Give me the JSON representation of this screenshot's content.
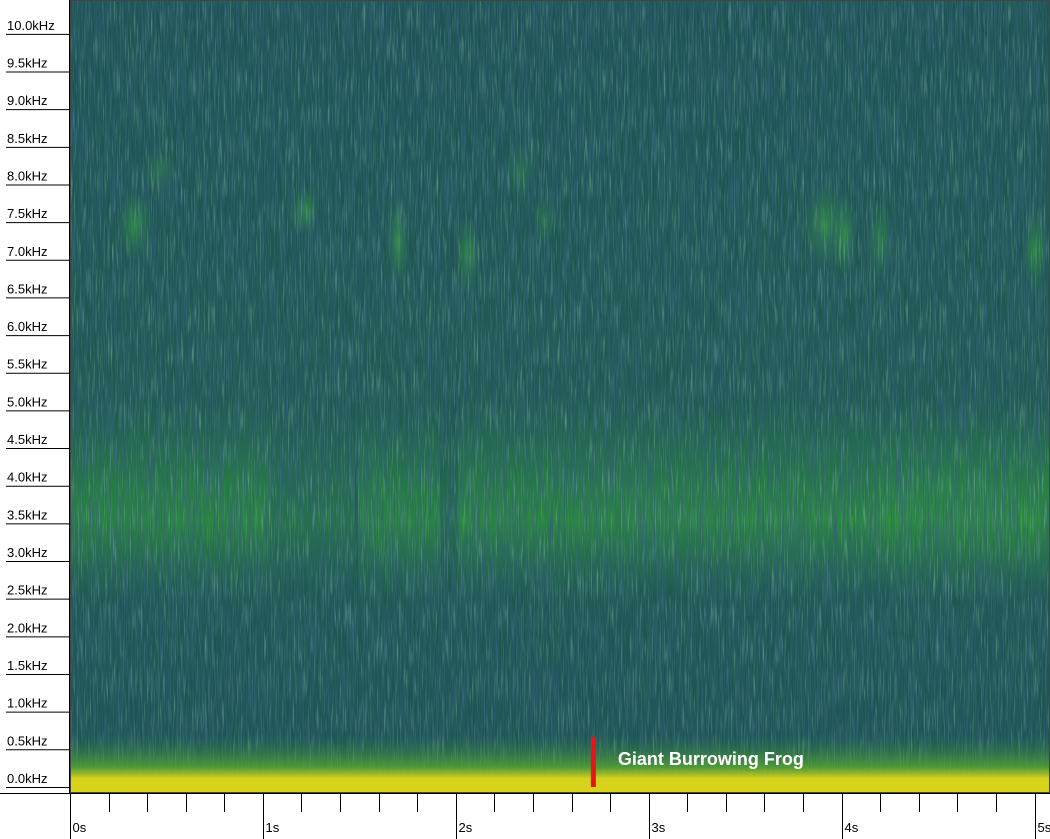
{
  "chart_data": {
    "type": "spectrogram",
    "xlim": [
      0,
      5.08
    ],
    "ylim": [
      -0.2,
      10.33
    ],
    "xticks": [
      {
        "value": 0,
        "label": "0s"
      },
      {
        "value": 1,
        "label": "1s"
      },
      {
        "value": 2,
        "label": "2s"
      },
      {
        "value": 3,
        "label": "3s"
      },
      {
        "value": 4,
        "label": "4s"
      },
      {
        "value": 5,
        "label": "5s"
      }
    ],
    "x_minor_ticks": [
      0.2,
      0.4,
      0.6,
      0.8,
      1.2,
      1.4,
      1.6,
      1.8,
      2.2,
      2.4,
      2.6,
      2.8,
      3.2,
      3.4,
      3.6,
      3.8,
      4.2,
      4.4,
      4.6,
      4.8
    ],
    "yticks": [
      {
        "value": 0,
        "label": "0.0kHz"
      },
      {
        "value": 0.5,
        "label": "0.5kHz"
      },
      {
        "value": 1,
        "label": "1.0kHz"
      },
      {
        "value": 1.5,
        "label": "1.5kHz"
      },
      {
        "value": 2,
        "label": "2.0kHz"
      },
      {
        "value": 2.5,
        "label": "2.5kHz"
      },
      {
        "value": 3,
        "label": "3.0kHz"
      },
      {
        "value": 3.5,
        "label": "3.5kHz"
      },
      {
        "value": 4,
        "label": "4.0kHz"
      },
      {
        "value": 4.5,
        "label": "4.5kHz"
      },
      {
        "value": 5,
        "label": "5.0kHz"
      },
      {
        "value": 5.5,
        "label": "5.5kHz"
      },
      {
        "value": 6,
        "label": "6.0kHz"
      },
      {
        "value": 6.5,
        "label": "6.5kHz"
      },
      {
        "value": 7,
        "label": "7.0kHz"
      },
      {
        "value": 7.5,
        "label": "7.5kHz"
      },
      {
        "value": 8,
        "label": "8.0kHz"
      },
      {
        "value": 8.5,
        "label": "8.5kHz"
      },
      {
        "value": 9,
        "label": "9.0kHz"
      },
      {
        "value": 9.5,
        "label": "9.5kHz"
      },
      {
        "value": 10,
        "label": "10.0kHz"
      }
    ],
    "annotation": {
      "text": "Giant Burrowing Frog",
      "x": 2.7,
      "color": "#e8141b"
    }
  }
}
